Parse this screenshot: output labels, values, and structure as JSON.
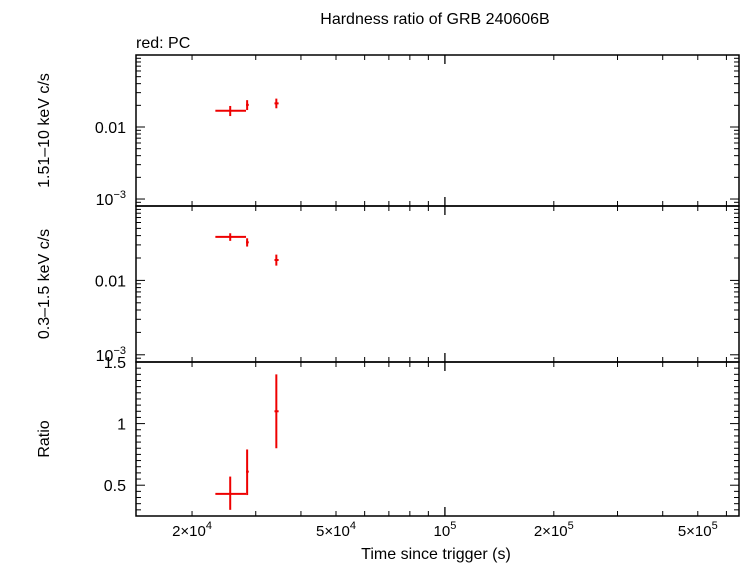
{
  "chart_data": {
    "type": "scatter",
    "title": "Hardness ratio of GRB 240606B",
    "subtitle": "red: PC",
    "xlabel": "Time since trigger (s)",
    "x_scale": "log",
    "xlim": [
      14000,
      650000
    ],
    "x_ticks": [
      {
        "value": 20000,
        "mant": "2",
        "exp": "4"
      },
      {
        "value": 50000,
        "mant": "5",
        "exp": "4"
      },
      {
        "value": 100000,
        "mant": "",
        "exp": "5"
      },
      {
        "value": 200000,
        "mant": "2",
        "exp": "5"
      },
      {
        "value": 500000,
        "mant": "5",
        "exp": "5"
      }
    ],
    "series_color": "#ee0000",
    "panels": [
      {
        "id": "hard",
        "ylabel": "1.51–10 keV c/s",
        "y_scale": "log",
        "ylim": [
          0.0008,
          0.1
        ],
        "y_ticks": [
          {
            "value": 0.01,
            "text": "0.01"
          },
          {
            "value": 0.001,
            "base": "10",
            "exp": "−3"
          }
        ],
        "points": [
          {
            "x": 25500,
            "xlo": 23200,
            "xhi": 28200,
            "y": 0.0168,
            "ylo": 0.0142,
            "yhi": 0.0196
          },
          {
            "x": 28400,
            "xlo": 28200,
            "xhi": 28700,
            "y": 0.0203,
            "ylo": 0.0172,
            "yhi": 0.0236
          },
          {
            "x": 34200,
            "xlo": 33800,
            "xhi": 34700,
            "y": 0.0213,
            "ylo": 0.0182,
            "yhi": 0.0248
          }
        ]
      },
      {
        "id": "soft",
        "ylabel": "0.3–1.5 keV c/s",
        "y_scale": "log",
        "ylim": [
          0.0008,
          0.1
        ],
        "y_ticks": [
          {
            "value": 0.01,
            "text": "0.01"
          },
          {
            "value": 0.001,
            "base": "10",
            "exp": "−3"
          }
        ],
        "points": [
          {
            "x": 25500,
            "xlo": 23200,
            "xhi": 28200,
            "y": 0.0385,
            "ylo": 0.034,
            "yhi": 0.043
          },
          {
            "x": 28400,
            "xlo": 28200,
            "xhi": 28700,
            "y": 0.0325,
            "ylo": 0.0285,
            "yhi": 0.0368
          },
          {
            "x": 34200,
            "xlo": 33800,
            "xhi": 34700,
            "y": 0.0188,
            "ylo": 0.0158,
            "yhi": 0.0222
          }
        ]
      },
      {
        "id": "ratio",
        "ylabel": "Ratio",
        "y_scale": "linear",
        "ylim": [
          0.25,
          1.5
        ],
        "y_ticks": [
          {
            "value": 1.5,
            "text": "1.5"
          },
          {
            "value": 1,
            "text": "1"
          },
          {
            "value": 0.5,
            "text": "0.5"
          }
        ],
        "minor_ticks": [
          0.3,
          0.35,
          0.4,
          0.45,
          0.55,
          0.6,
          0.65,
          0.7,
          0.75,
          0.8,
          0.85,
          0.9,
          0.95,
          1.05,
          1.1,
          1.15,
          1.2,
          1.25,
          1.3,
          1.35,
          1.4,
          1.45
        ],
        "points": [
          {
            "x": 25500,
            "xlo": 23200,
            "xhi": 28200,
            "y": 0.43,
            "ylo": 0.3,
            "yhi": 0.57
          },
          {
            "x": 28400,
            "xlo": 28200,
            "xhi": 28700,
            "y": 0.61,
            "ylo": 0.42,
            "yhi": 0.79
          },
          {
            "x": 34200,
            "xlo": 33800,
            "xhi": 34700,
            "y": 1.1,
            "ylo": 0.8,
            "yhi": 1.4
          }
        ]
      }
    ]
  }
}
